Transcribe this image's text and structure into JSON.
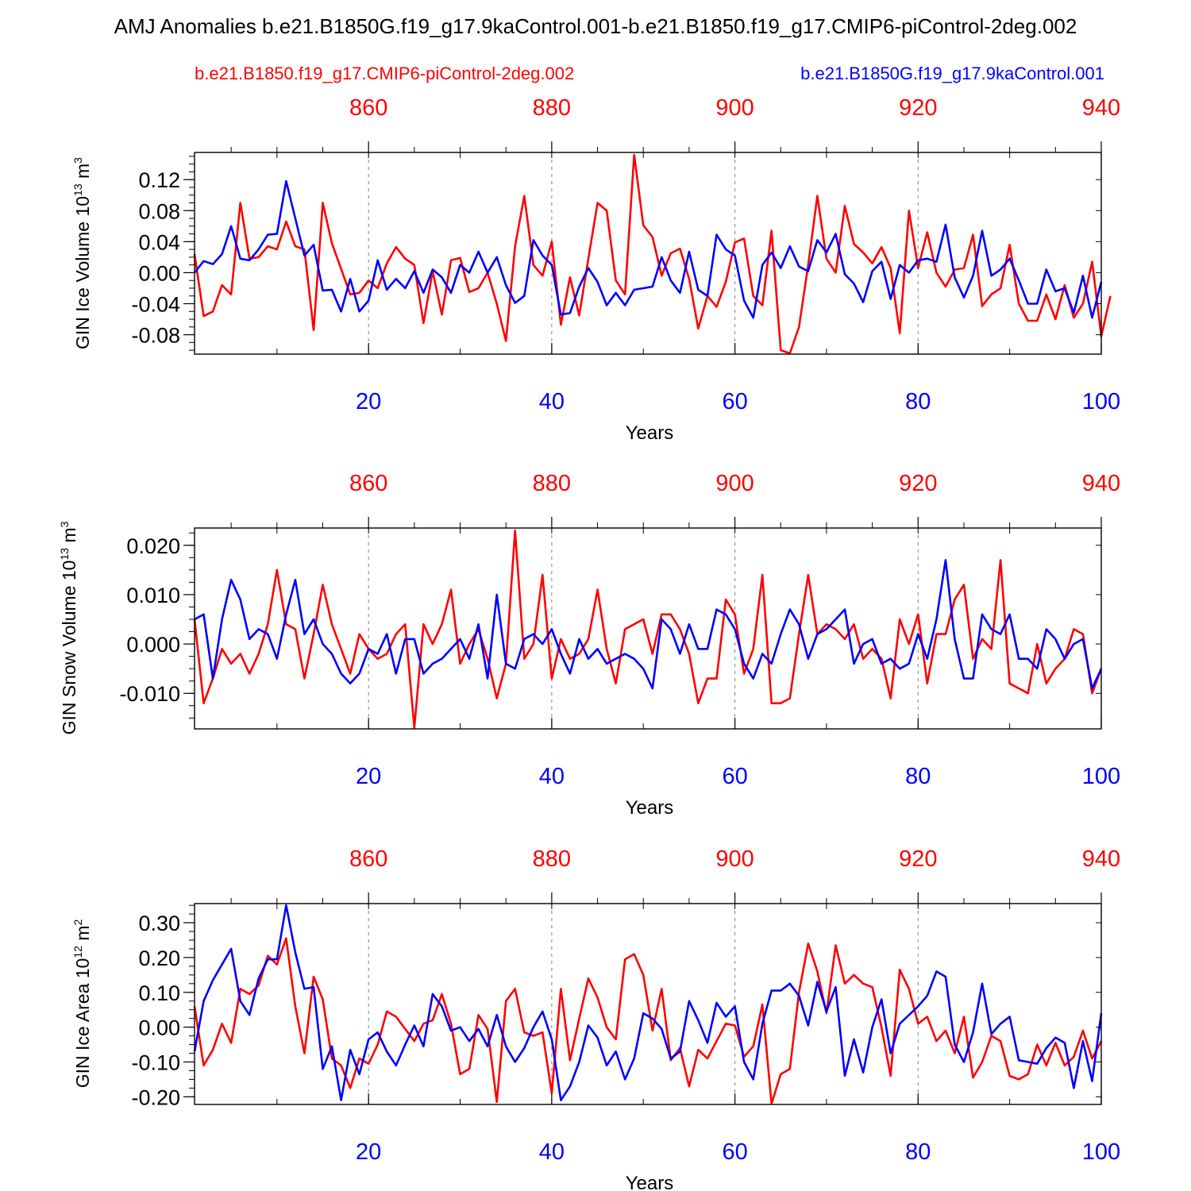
{
  "title": "AMJ Anomalies b.e21.B1850G.f19_g17.9kaControl.001-b.e21.B1850.f19_g17.CMIP6-piControl-2deg.002",
  "legend": {
    "red_label": "b.e21.B1850.f19_g17.CMIP6-piControl-2deg.002",
    "blue_label": "b.e21.B1850G.f19_g17.9kaControl.001"
  },
  "colors": {
    "red": "#ff0000",
    "blue": "#0000ff",
    "axis": "#000000",
    "grid": "#808080"
  },
  "chart_data": [
    {
      "type": "line",
      "title": "",
      "xlabel": "Years",
      "ylabel": "GIN Ice Volume 10^13 m^3",
      "ylabel_main": "GIN Ice Volume 10",
      "ylabel_exp": "13",
      "ylabel_unit": "m",
      "ylabel_unit_exp": "3",
      "xlim": [
        1,
        100
      ],
      "ylim": [
        -0.105,
        0.155
      ],
      "top_xlim": [
        841,
        940
      ],
      "yticks": [
        -0.08,
        -0.04,
        0.0,
        0.04,
        0.08,
        0.12
      ],
      "ytick_labels": [
        "-0.08",
        "-0.04",
        "0.00",
        "0.04",
        "0.08",
        "0.12"
      ],
      "xticks": [
        20,
        40,
        60,
        80,
        100
      ],
      "xtick_labels": [
        "20",
        "40",
        "60",
        "80",
        "100"
      ],
      "top_ticks": [
        860,
        880,
        900,
        920,
        940
      ],
      "top_tick_labels": [
        "860",
        "880",
        "900",
        "920",
        "940"
      ],
      "series": [
        {
          "name": "b.e21.B1850.f19_g17.CMIP6-piControl-2deg.002",
          "color": "#ff0000",
          "values": [
            0.024,
            -0.056,
            -0.05,
            -0.016,
            -0.028,
            0.09,
            0.018,
            0.02,
            0.034,
            0.03,
            0.066,
            0.034,
            0.03,
            -0.074,
            0.09,
            0.038,
            0.005,
            -0.028,
            -0.026,
            -0.01,
            -0.02,
            0.012,
            0.033,
            0.018,
            0.01,
            -0.065,
            0.002,
            -0.054,
            0.016,
            0.019,
            -0.025,
            -0.02,
            0.0,
            -0.04,
            -0.088,
            0.034,
            0.099,
            0.01,
            -0.004,
            0.04,
            -0.067,
            -0.006,
            -0.055,
            0.018,
            0.09,
            0.08,
            -0.01,
            -0.028,
            0.152,
            0.061,
            0.046,
            -0.004,
            0.025,
            0.031,
            -0.008,
            -0.072,
            -0.03,
            -0.044,
            -0.012,
            0.039,
            0.044,
            -0.03,
            -0.042,
            0.054,
            -0.1,
            -0.104,
            -0.07,
            0.01,
            0.099,
            0.018,
            0.0,
            0.086,
            0.037,
            0.026,
            0.012,
            0.033,
            0.006,
            -0.078,
            0.08,
            0.006,
            0.052,
            0.0,
            -0.018,
            0.004,
            0.006,
            0.049,
            -0.043,
            -0.028,
            -0.02,
            0.036,
            -0.04,
            -0.062,
            -0.062,
            -0.028,
            -0.06,
            -0.016,
            -0.058,
            -0.04,
            0.014,
            -0.082,
            -0.03
          ]
        },
        {
          "name": "b.e21.B1850G.f19_g17.9kaControl.001",
          "color": "#0000ff",
          "values": [
            0.0,
            0.015,
            0.011,
            0.024,
            0.06,
            0.018,
            0.016,
            0.03,
            0.049,
            0.05,
            0.118,
            0.07,
            0.022,
            0.036,
            -0.023,
            -0.022,
            -0.05,
            -0.008,
            -0.05,
            -0.036,
            0.016,
            -0.022,
            -0.008,
            -0.02,
            0.002,
            -0.026,
            0.004,
            -0.006,
            -0.026,
            0.01,
            0.0,
            0.027,
            0.0,
            0.02,
            -0.016,
            -0.039,
            -0.03,
            0.042,
            0.022,
            0.01,
            -0.054,
            -0.052,
            -0.018,
            0.006,
            -0.012,
            -0.042,
            -0.026,
            -0.042,
            -0.022,
            -0.02,
            -0.018,
            0.02,
            -0.01,
            -0.026,
            0.027,
            -0.022,
            -0.03,
            0.049,
            0.03,
            0.022,
            -0.036,
            -0.058,
            0.01,
            0.026,
            0.006,
            0.034,
            0.008,
            0.002,
            0.042,
            0.026,
            0.05,
            -0.002,
            -0.014,
            -0.038,
            0.002,
            0.014,
            -0.034,
            0.01,
            0.0,
            0.016,
            0.018,
            0.014,
            0.062,
            -0.006,
            -0.032,
            -0.004,
            0.054,
            -0.004,
            0.004,
            0.018,
            -0.01,
            -0.04,
            -0.04,
            0.004,
            -0.024,
            -0.02,
            -0.052,
            -0.004,
            -0.058,
            -0.012
          ]
        }
      ]
    },
    {
      "type": "line",
      "title": "",
      "xlabel": "Years",
      "ylabel": "GIN Snow Volume 10^13 m^3",
      "ylabel_main": "GIN Snow Volume 10",
      "ylabel_exp": "13",
      "ylabel_unit": "m",
      "ylabel_unit_exp": "3",
      "xlim": [
        1,
        100
      ],
      "ylim": [
        -0.0172,
        0.0235
      ],
      "top_xlim": [
        841,
        940
      ],
      "yticks": [
        -0.01,
        0.0,
        0.01,
        0.02
      ],
      "ytick_labels": [
        "-0.010",
        "0.000",
        "0.010",
        "0.020"
      ],
      "xticks": [
        20,
        40,
        60,
        80,
        100
      ],
      "xtick_labels": [
        "20",
        "40",
        "60",
        "80",
        "100"
      ],
      "top_ticks": [
        860,
        880,
        900,
        920,
        940
      ],
      "top_tick_labels": [
        "860",
        "880",
        "900",
        "920",
        "940"
      ],
      "series": [
        {
          "name": "b.e21.B1850.f19_g17.CMIP6-piControl-2deg.002",
          "color": "#ff0000",
          "values": [
            0.005,
            -0.012,
            -0.007,
            -0.001,
            -0.004,
            -0.002,
            -0.006,
            -0.002,
            0.004,
            0.015,
            0.004,
            0.003,
            -0.007,
            0.002,
            0.012,
            0.004,
            -0.001,
            -0.006,
            0.002,
            -0.001,
            -0.003,
            -0.002,
            0.002,
            0.004,
            -0.017,
            0.004,
            0.0,
            0.004,
            0.011,
            -0.004,
            0.0,
            0.003,
            -0.003,
            -0.011,
            -0.004,
            0.023,
            -0.003,
            0.0,
            0.014,
            -0.007,
            0.001,
            -0.003,
            -0.002,
            0.001,
            0.011,
            -0.001,
            -0.008,
            0.003,
            0.004,
            0.005,
            -0.002,
            0.006,
            0.006,
            0.003,
            -0.002,
            -0.012,
            -0.007,
            -0.007,
            0.009,
            0.006,
            -0.006,
            -0.001,
            0.014,
            -0.012,
            -0.012,
            -0.011,
            0.002,
            0.014,
            0.002,
            0.004,
            0.003,
            0.001,
            0.004,
            -0.003,
            -0.001,
            -0.003,
            -0.011,
            0.005,
            0.0,
            0.006,
            -0.008,
            0.002,
            0.002,
            0.009,
            0.012,
            -0.003,
            0.001,
            -0.001,
            0.017,
            -0.008,
            -0.009,
            -0.01,
            0.0,
            -0.008,
            -0.005,
            -0.003,
            0.003,
            0.002,
            -0.01,
            -0.005
          ]
        },
        {
          "name": "b.e21.B1850G.f19_g17.9kaControl.001",
          "color": "#0000ff",
          "values": [
            0.005,
            0.006,
            -0.007,
            0.005,
            0.013,
            0.009,
            0.001,
            0.003,
            0.002,
            -0.003,
            0.006,
            0.013,
            0.002,
            0.005,
            0.0,
            -0.002,
            -0.006,
            -0.008,
            -0.006,
            -0.001,
            -0.002,
            0.002,
            -0.006,
            0.001,
            0.001,
            -0.006,
            -0.004,
            -0.003,
            -0.001,
            0.001,
            -0.003,
            0.004,
            -0.007,
            0.01,
            -0.004,
            -0.005,
            0.001,
            0.002,
            0.0,
            0.003,
            -0.002,
            -0.006,
            0.001,
            -0.003,
            -0.001,
            -0.004,
            -0.003,
            -0.002,
            -0.003,
            -0.005,
            -0.009,
            0.005,
            0.003,
            -0.002,
            0.004,
            -0.001,
            -0.001,
            0.007,
            0.006,
            0.003,
            -0.004,
            -0.007,
            -0.002,
            -0.004,
            0.002,
            0.007,
            0.004,
            -0.003,
            0.002,
            0.003,
            0.005,
            0.007,
            -0.004,
            0.0,
            0.001,
            -0.004,
            -0.003,
            -0.005,
            -0.004,
            0.002,
            -0.003,
            0.005,
            0.017,
            0.001,
            -0.007,
            -0.007,
            0.006,
            0.003,
            0.002,
            0.006,
            -0.003,
            -0.003,
            -0.005,
            0.003,
            0.001,
            -0.003,
            0.0,
            0.001,
            -0.009,
            -0.005
          ]
        }
      ]
    },
    {
      "type": "line",
      "title": "",
      "xlabel": "Years",
      "ylabel": "GIN Ice Area 10^12 m^2",
      "ylabel_main": "GIN Ice Area 10",
      "ylabel_exp": "12",
      "ylabel_unit": "m",
      "ylabel_unit_exp": "2",
      "xlim": [
        1,
        100
      ],
      "ylim": [
        -0.222,
        0.355
      ],
      "top_xlim": [
        841,
        940
      ],
      "yticks": [
        -0.2,
        -0.1,
        0.0,
        0.1,
        0.2,
        0.3
      ],
      "ytick_labels": [
        "-0.20",
        "-0.10",
        "0.00",
        "0.10",
        "0.20",
        "0.30"
      ],
      "xticks": [
        20,
        40,
        60,
        80,
        100
      ],
      "xtick_labels": [
        "20",
        "40",
        "60",
        "80",
        "100"
      ],
      "top_ticks": [
        860,
        880,
        900,
        920,
        940
      ],
      "top_tick_labels": [
        "860",
        "880",
        "900",
        "920",
        "940"
      ],
      "series": [
        {
          "name": "b.e21.B1850.f19_g17.CMIP6-piControl-2deg.002",
          "color": "#ff0000",
          "values": [
            0.06,
            -0.11,
            -0.065,
            0.01,
            -0.045,
            0.11,
            0.095,
            0.12,
            0.205,
            0.18,
            0.255,
            0.06,
            -0.075,
            0.145,
            0.08,
            -0.09,
            -0.11,
            -0.175,
            -0.09,
            -0.105,
            -0.05,
            0.045,
            0.03,
            -0.005,
            -0.04,
            0.01,
            0.02,
            0.095,
            0.01,
            -0.135,
            -0.12,
            0.035,
            -0.005,
            -0.215,
            0.075,
            0.11,
            -0.015,
            -0.025,
            -0.015,
            -0.19,
            0.11,
            -0.095,
            0.025,
            0.14,
            0.085,
            0.0,
            -0.035,
            0.195,
            0.21,
            0.15,
            -0.01,
            0.11,
            -0.095,
            -0.06,
            -0.17,
            -0.065,
            -0.09,
            -0.04,
            0.01,
            0.005,
            -0.085,
            -0.055,
            0.065,
            -0.22,
            -0.135,
            -0.12,
            0.1,
            0.24,
            0.16,
            0.04,
            0.235,
            0.125,
            0.15,
            0.125,
            0.115,
            0.0,
            -0.14,
            0.165,
            0.11,
            0.01,
            0.03,
            -0.04,
            -0.01,
            -0.075,
            0.03,
            -0.145,
            -0.1,
            -0.025,
            -0.04,
            -0.14,
            -0.15,
            -0.135,
            -0.05,
            -0.11,
            -0.045,
            -0.11,
            -0.085,
            -0.01,
            -0.09,
            -0.04
          ]
        },
        {
          "name": "b.e21.B1850G.f19_g17.9kaControl.001",
          "color": "#0000ff",
          "values": [
            -0.07,
            0.075,
            0.135,
            0.18,
            0.225,
            0.075,
            0.035,
            0.14,
            0.195,
            0.195,
            0.35,
            0.215,
            0.11,
            0.115,
            -0.12,
            -0.055,
            -0.21,
            -0.065,
            -0.135,
            -0.035,
            -0.015,
            -0.07,
            -0.11,
            -0.05,
            0.005,
            -0.055,
            0.095,
            0.06,
            -0.01,
            0.0,
            -0.04,
            -0.005,
            -0.055,
            0.035,
            -0.055,
            -0.1,
            -0.06,
            0.0,
            0.045,
            -0.035,
            -0.21,
            -0.17,
            -0.1,
            0.005,
            -0.03,
            -0.11,
            -0.07,
            -0.15,
            -0.09,
            0.04,
            0.025,
            -0.005,
            -0.09,
            -0.07,
            0.075,
            0.02,
            -0.045,
            0.07,
            0.03,
            0.06,
            -0.1,
            -0.15,
            0.01,
            0.105,
            0.105,
            0.125,
            0.09,
            0.005,
            0.13,
            0.045,
            0.115,
            -0.14,
            -0.035,
            -0.13,
            0.0,
            0.08,
            -0.075,
            0.01,
            0.035,
            0.06,
            0.09,
            0.16,
            0.145,
            -0.05,
            -0.1,
            -0.015,
            0.125,
            -0.02,
            0.01,
            0.03,
            -0.095,
            -0.1,
            -0.105,
            -0.06,
            -0.03,
            -0.045,
            -0.175,
            -0.04,
            -0.155,
            0.04
          ]
        }
      ]
    }
  ]
}
